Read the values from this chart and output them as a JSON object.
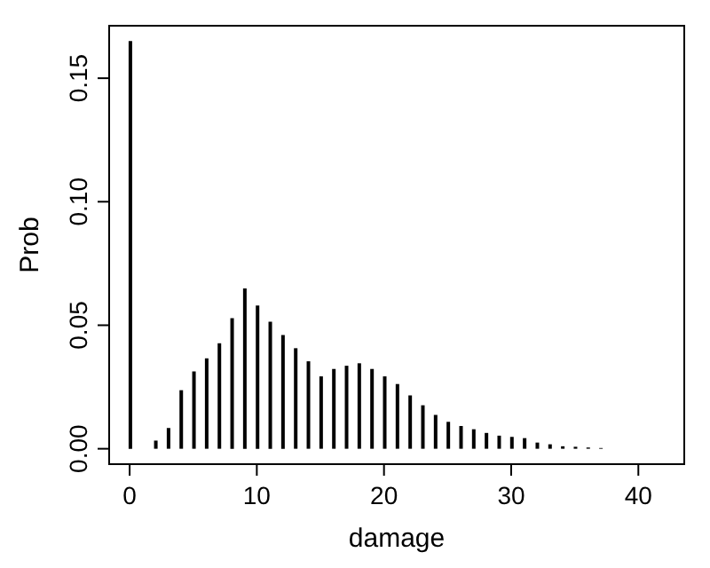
{
  "chart_data": {
    "type": "bar",
    "xlabel": "damage",
    "ylabel": "Prob",
    "color": "#000000",
    "x": [
      0,
      1,
      2,
      3,
      4,
      5,
      6,
      7,
      8,
      9,
      10,
      11,
      12,
      13,
      14,
      15,
      16,
      17,
      18,
      19,
      20,
      21,
      22,
      23,
      24,
      25,
      26,
      27,
      28,
      29,
      30,
      31,
      32,
      33,
      34,
      35,
      36,
      37
    ],
    "values": [
      0.165,
      0,
      0.0033,
      0.0084,
      0.0237,
      0.0313,
      0.0366,
      0.0427,
      0.0529,
      0.0649,
      0.058,
      0.0514,
      0.046,
      0.0407,
      0.0354,
      0.0293,
      0.0323,
      0.0336,
      0.0346,
      0.0323,
      0.0293,
      0.0262,
      0.0216,
      0.0176,
      0.0137,
      0.0109,
      0.0092,
      0.0079,
      0.0064,
      0.0053,
      0.0048,
      0.0043,
      0.0025,
      0.0018,
      0.001,
      0.0008,
      0.0005,
      0.0003
    ],
    "xlim": [
      -1.68,
      43.68
    ],
    "xticks": [
      0,
      10,
      20,
      30,
      40
    ],
    "ylim": [
      -0.0066,
      0.1716
    ],
    "yticks": [
      {
        "value": 0,
        "label": "0.00"
      },
      0.05,
      {
        "value": 0.1,
        "label": "0.10"
      },
      {
        "value": 0.15,
        "label": "0.15"
      }
    ],
    "grid": false,
    "legend": false
  }
}
